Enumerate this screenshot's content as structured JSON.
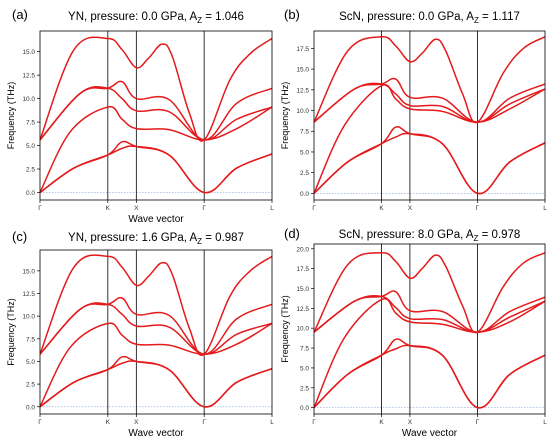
{
  "chart_data": [
    {
      "type": "line",
      "panel_label": "(a)",
      "title": {
        "main": "YN, pressure: 0.0 GPa, A",
        "sub": "Z",
        "tail": " = 1.046"
      },
      "xlabel": "Wave vector",
      "ylabel": "Frequency (THz)",
      "x_ticks": [
        "Γ",
        "K",
        "X",
        "Γ",
        "L"
      ],
      "k_positions": [
        0,
        1,
        1.42,
        2.42,
        3.42
      ],
      "ylim": [
        -0.8,
        17.2
      ],
      "y_ticks": [
        0.0,
        2.5,
        5.0,
        7.5,
        10.0,
        12.5,
        15.0
      ],
      "series": [
        {
          "points": [
            [
              0,
              5.6
            ],
            [
              0.5,
              15.2
            ],
            [
              1,
              16.4
            ],
            [
              1.21,
              15.2
            ],
            [
              1.42,
              13.3
            ],
            [
              1.6,
              14.3
            ],
            [
              1.8,
              15.8
            ],
            [
              1.95,
              14.5
            ],
            [
              2.2,
              8.5
            ],
            [
              2.42,
              5.6
            ],
            [
              2.8,
              12.0
            ],
            [
              3.1,
              14.8
            ],
            [
              3.42,
              16.4
            ]
          ]
        },
        {
          "points": [
            [
              0,
              5.6
            ],
            [
              0.6,
              10.6
            ],
            [
              1,
              11.1
            ],
            [
              1.21,
              11.8
            ],
            [
              1.42,
              10.0
            ],
            [
              1.9,
              9.9
            ],
            [
              2.42,
              5.6
            ],
            [
              2.9,
              9.5
            ],
            [
              3.42,
              11.1
            ]
          ]
        },
        {
          "points": [
            [
              0,
              5.6
            ],
            [
              0.6,
              10.6
            ],
            [
              1,
              11.1
            ],
            [
              1.21,
              10.0
            ],
            [
              1.42,
              8.7
            ],
            [
              1.9,
              8.6
            ],
            [
              2.42,
              5.6
            ],
            [
              2.9,
              7.8
            ],
            [
              3.42,
              9.1
            ]
          ]
        },
        {
          "points": [
            [
              0,
              0.0
            ],
            [
              0.45,
              6.5
            ],
            [
              1,
              9.1
            ],
            [
              1.21,
              7.8
            ],
            [
              1.42,
              6.8
            ],
            [
              1.9,
              6.7
            ],
            [
              2.42,
              5.6
            ],
            [
              2.9,
              6.8
            ],
            [
              3.42,
              9.1
            ]
          ]
        },
        {
          "points": [
            [
              0,
              0.0
            ],
            [
              0.5,
              2.6
            ],
            [
              1,
              4.0
            ],
            [
              1.21,
              4.7
            ],
            [
              1.42,
              4.9
            ],
            [
              1.9,
              4.0
            ],
            [
              2.42,
              0.0
            ],
            [
              2.9,
              2.6
            ],
            [
              3.42,
              4.1
            ]
          ]
        },
        {
          "points": [
            [
              0,
              0.0
            ],
            [
              0.5,
              2.6
            ],
            [
              1,
              4.0
            ],
            [
              1.21,
              5.4
            ],
            [
              1.42,
              4.9
            ],
            [
              1.9,
              4.0
            ],
            [
              2.42,
              0.0
            ],
            [
              2.9,
              2.6
            ],
            [
              3.42,
              4.1
            ]
          ]
        }
      ]
    },
    {
      "type": "line",
      "panel_label": "(b)",
      "title": {
        "main": "ScN, pressure: 0.0 GPa, A",
        "sub": "Z",
        "tail": " = 1.117"
      },
      "xlabel": "",
      "ylabel": "Frequency (THz)",
      "x_ticks": [
        "Γ",
        "K",
        "X",
        "Γ",
        "L"
      ],
      "k_positions": [
        0,
        1,
        1.42,
        2.42,
        3.42
      ],
      "ylim": [
        -0.8,
        19.6
      ],
      "y_ticks": [
        0.0,
        2.5,
        5.0,
        7.5,
        10.0,
        12.5,
        15.0,
        17.5
      ],
      "series": [
        {
          "points": [
            [
              0,
              8.6
            ],
            [
              0.5,
              17.2
            ],
            [
              1,
              18.9
            ],
            [
              1.21,
              17.8
            ],
            [
              1.42,
              15.9
            ],
            [
              1.6,
              16.9
            ],
            [
              1.8,
              18.6
            ],
            [
              1.95,
              17.2
            ],
            [
              2.2,
              12.0
            ],
            [
              2.42,
              8.6
            ],
            [
              2.8,
              14.5
            ],
            [
              3.1,
              17.5
            ],
            [
              3.42,
              18.9
            ]
          ]
        },
        {
          "points": [
            [
              0,
              8.6
            ],
            [
              0.6,
              12.6
            ],
            [
              1,
              13.2
            ],
            [
              1.21,
              13.8
            ],
            [
              1.42,
              11.6
            ],
            [
              1.9,
              11.5
            ],
            [
              2.42,
              8.6
            ],
            [
              2.9,
              11.5
            ],
            [
              3.42,
              13.2
            ]
          ]
        },
        {
          "points": [
            [
              0,
              8.6
            ],
            [
              0.6,
              12.6
            ],
            [
              1,
              13.2
            ],
            [
              1.21,
              12.0
            ],
            [
              1.42,
              10.6
            ],
            [
              1.9,
              10.5
            ],
            [
              2.42,
              8.6
            ],
            [
              2.9,
              10.8
            ],
            [
              3.42,
              12.6
            ]
          ]
        },
        {
          "points": [
            [
              0,
              0.0
            ],
            [
              0.45,
              8.2
            ],
            [
              1,
              13.0
            ],
            [
              1.21,
              11.4
            ],
            [
              1.42,
              10.2
            ],
            [
              1.9,
              9.9
            ],
            [
              2.42,
              8.6
            ],
            [
              2.9,
              10.2
            ],
            [
              3.42,
              12.6
            ]
          ]
        },
        {
          "points": [
            [
              0,
              0.0
            ],
            [
              0.5,
              3.8
            ],
            [
              1,
              6.0
            ],
            [
              1.21,
              6.8
            ],
            [
              1.42,
              7.2
            ],
            [
              1.9,
              6.0
            ],
            [
              2.42,
              0.0
            ],
            [
              2.9,
              3.8
            ],
            [
              3.42,
              6.1
            ]
          ]
        },
        {
          "points": [
            [
              0,
              0.0
            ],
            [
              0.5,
              3.8
            ],
            [
              1,
              6.0
            ],
            [
              1.21,
              8.0
            ],
            [
              1.42,
              7.2
            ],
            [
              1.9,
              6.0
            ],
            [
              2.42,
              0.0
            ],
            [
              2.9,
              3.8
            ],
            [
              3.42,
              6.1
            ]
          ]
        }
      ]
    },
    {
      "type": "line",
      "panel_label": "(c)",
      "title": {
        "main": "YN, pressure: 1.6 GPa, A",
        "sub": "Z",
        "tail": " = 0.987"
      },
      "xlabel": "Wave vector",
      "ylabel": "Frequency (THz)",
      "x_ticks": [
        "Γ",
        "K",
        "X",
        "Γ",
        "L"
      ],
      "k_positions": [
        0,
        1,
        1.42,
        2.42,
        3.42
      ],
      "ylim": [
        -0.8,
        17.3
      ],
      "y_ticks": [
        0.0,
        2.5,
        5.0,
        7.5,
        10.0,
        12.5,
        15.0
      ],
      "series": [
        {
          "points": [
            [
              0,
              5.8
            ],
            [
              0.5,
              15.4
            ],
            [
              1,
              16.6
            ],
            [
              1.21,
              15.4
            ],
            [
              1.42,
              13.4
            ],
            [
              1.6,
              14.4
            ],
            [
              1.8,
              15.9
            ],
            [
              1.95,
              14.6
            ],
            [
              2.2,
              8.7
            ],
            [
              2.42,
              5.8
            ],
            [
              2.8,
              12.2
            ],
            [
              3.1,
              15.0
            ],
            [
              3.42,
              16.6
            ]
          ]
        },
        {
          "points": [
            [
              0,
              5.8
            ],
            [
              0.6,
              10.8
            ],
            [
              1,
              11.3
            ],
            [
              1.21,
              12.0
            ],
            [
              1.42,
              10.2
            ],
            [
              1.9,
              10.1
            ],
            [
              2.42,
              5.8
            ],
            [
              2.9,
              9.7
            ],
            [
              3.42,
              11.3
            ]
          ]
        },
        {
          "points": [
            [
              0,
              5.8
            ],
            [
              0.6,
              10.8
            ],
            [
              1,
              11.3
            ],
            [
              1.21,
              10.2
            ],
            [
              1.42,
              8.9
            ],
            [
              1.9,
              8.8
            ],
            [
              2.42,
              5.8
            ],
            [
              2.9,
              8.0
            ],
            [
              3.42,
              9.2
            ]
          ]
        },
        {
          "points": [
            [
              0,
              0.0
            ],
            [
              0.45,
              6.6
            ],
            [
              1,
              9.2
            ],
            [
              1.21,
              7.9
            ],
            [
              1.42,
              6.9
            ],
            [
              1.9,
              6.8
            ],
            [
              2.42,
              5.8
            ],
            [
              2.9,
              6.9
            ],
            [
              3.42,
              9.2
            ]
          ]
        },
        {
          "points": [
            [
              0,
              0.0
            ],
            [
              0.5,
              2.7
            ],
            [
              1,
              4.1
            ],
            [
              1.21,
              4.8
            ],
            [
              1.42,
              5.0
            ],
            [
              1.9,
              4.1
            ],
            [
              2.42,
              0.0
            ],
            [
              2.9,
              2.7
            ],
            [
              3.42,
              4.2
            ]
          ]
        },
        {
          "points": [
            [
              0,
              0.0
            ],
            [
              0.5,
              2.7
            ],
            [
              1,
              4.1
            ],
            [
              1.21,
              5.5
            ],
            [
              1.42,
              5.0
            ],
            [
              1.9,
              4.1
            ],
            [
              2.42,
              0.0
            ],
            [
              2.9,
              2.7
            ],
            [
              3.42,
              4.2
            ]
          ]
        }
      ]
    },
    {
      "type": "line",
      "panel_label": "(d)",
      "title": {
        "main": "ScN, pressure: 8.0 GPa, A",
        "sub": "Z",
        "tail": " = 0.978"
      },
      "xlabel": "Wave vector",
      "ylabel": "Frequency (THz)",
      "x_ticks": [
        "Γ",
        "K",
        "X",
        "Γ",
        "L"
      ],
      "k_positions": [
        0,
        1,
        1.42,
        2.42,
        3.42
      ],
      "ylim": [
        -0.8,
        20.6
      ],
      "y_ticks": [
        0.0,
        2.5,
        5.0,
        7.5,
        10.0,
        12.5,
        15.0,
        17.5,
        20.0
      ],
      "series": [
        {
          "points": [
            [
              0,
              9.5
            ],
            [
              0.5,
              18.0
            ],
            [
              1,
              19.5
            ],
            [
              1.21,
              18.4
            ],
            [
              1.42,
              16.3
            ],
            [
              1.6,
              17.5
            ],
            [
              1.8,
              19.2
            ],
            [
              1.95,
              17.8
            ],
            [
              2.2,
              12.8
            ],
            [
              2.42,
              9.5
            ],
            [
              2.8,
              15.2
            ],
            [
              3.1,
              18.2
            ],
            [
              3.42,
              19.5
            ]
          ]
        },
        {
          "points": [
            [
              0,
              9.5
            ],
            [
              0.6,
              13.4
            ],
            [
              1,
              14.0
            ],
            [
              1.21,
              14.6
            ],
            [
              1.42,
              12.2
            ],
            [
              1.9,
              12.1
            ],
            [
              2.42,
              9.5
            ],
            [
              2.9,
              12.1
            ],
            [
              3.42,
              13.9
            ]
          ]
        },
        {
          "points": [
            [
              0,
              9.5
            ],
            [
              0.6,
              13.4
            ],
            [
              1,
              14.0
            ],
            [
              1.21,
              12.6
            ],
            [
              1.42,
              11.2
            ],
            [
              1.9,
              11.1
            ],
            [
              2.42,
              9.5
            ],
            [
              2.9,
              11.4
            ],
            [
              3.42,
              13.4
            ]
          ]
        },
        {
          "points": [
            [
              0,
              0.0
            ],
            [
              0.45,
              8.8
            ],
            [
              1,
              13.6
            ],
            [
              1.21,
              11.9
            ],
            [
              1.42,
              10.8
            ],
            [
              1.9,
              10.5
            ],
            [
              2.42,
              9.5
            ],
            [
              2.9,
              10.8
            ],
            [
              3.42,
              13.4
            ]
          ]
        },
        {
          "points": [
            [
              0,
              0.0
            ],
            [
              0.5,
              4.2
            ],
            [
              1,
              6.6
            ],
            [
              1.21,
              7.4
            ],
            [
              1.42,
              7.8
            ],
            [
              1.9,
              6.6
            ],
            [
              2.42,
              0.0
            ],
            [
              2.9,
              4.2
            ],
            [
              3.42,
              6.6
            ]
          ]
        },
        {
          "points": [
            [
              0,
              0.0
            ],
            [
              0.5,
              4.2
            ],
            [
              1,
              6.6
            ],
            [
              1.21,
              8.6
            ],
            [
              1.42,
              7.8
            ],
            [
              1.9,
              6.6
            ],
            [
              2.42,
              0.0
            ],
            [
              2.9,
              4.2
            ],
            [
              3.42,
              6.6
            ]
          ]
        }
      ]
    }
  ],
  "colors": {
    "band": "#e41a1c",
    "kline": "#000000",
    "zero_line": "#9bb6d6",
    "axis": "#000000"
  }
}
